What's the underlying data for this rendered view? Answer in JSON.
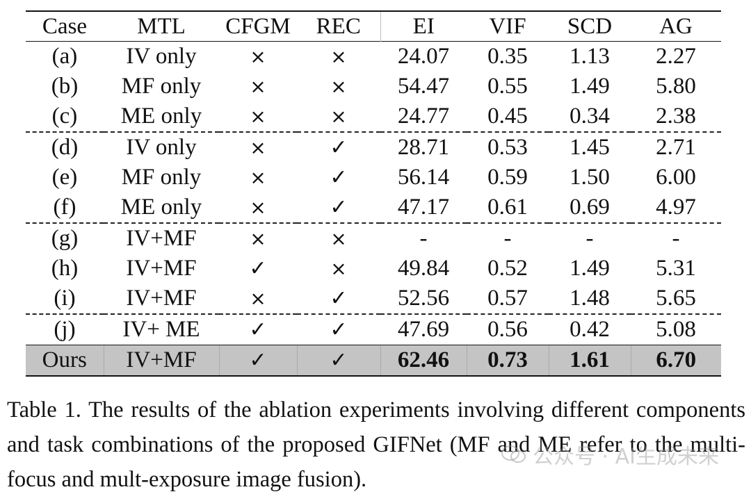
{
  "table": {
    "headers": [
      "Case",
      "MTL",
      "CFGM",
      "REC",
      "EI",
      "VIF",
      "SCD",
      "AG"
    ],
    "rows": [
      {
        "case": "(a)",
        "mtl": "IV only",
        "cfgm": "×",
        "rec": "×",
        "ei": "24.07",
        "vif": "0.35",
        "scd": "1.13",
        "ag": "2.27"
      },
      {
        "case": "(b)",
        "mtl": "MF only",
        "cfgm": "×",
        "rec": "×",
        "ei": "54.47",
        "vif": "0.55",
        "scd": "1.49",
        "ag": "5.80"
      },
      {
        "case": "(c)",
        "mtl": "ME only",
        "cfgm": "×",
        "rec": "×",
        "ei": "24.77",
        "vif": "0.45",
        "scd": "0.34",
        "ag": "2.38"
      },
      {
        "case": "(d)",
        "mtl": "IV only",
        "cfgm": "×",
        "rec": "✓",
        "ei": "28.71",
        "vif": "0.53",
        "scd": "1.45",
        "ag": "2.71"
      },
      {
        "case": "(e)",
        "mtl": "MF only",
        "cfgm": "×",
        "rec": "✓",
        "ei": "56.14",
        "vif": "0.59",
        "scd": "1.50",
        "ag": "6.00"
      },
      {
        "case": "(f)",
        "mtl": "ME only",
        "cfgm": "×",
        "rec": "✓",
        "ei": "47.17",
        "vif": "0.61",
        "scd": "0.69",
        "ag": "4.97"
      },
      {
        "case": "(g)",
        "mtl": "IV+MF",
        "cfgm": "×",
        "rec": "×",
        "ei": "-",
        "vif": "-",
        "scd": "-",
        "ag": "-"
      },
      {
        "case": "(h)",
        "mtl": "IV+MF",
        "cfgm": "✓",
        "rec": "×",
        "ei": "49.84",
        "vif": "0.52",
        "scd": "1.49",
        "ag": "5.31"
      },
      {
        "case": "(i)",
        "mtl": "IV+MF",
        "cfgm": "×",
        "rec": "✓",
        "ei": "52.56",
        "vif": "0.57",
        "scd": "1.48",
        "ag": "5.65"
      },
      {
        "case": "(j)",
        "mtl": "IV+ ME",
        "cfgm": "✓",
        "rec": "✓",
        "ei": "47.69",
        "vif": "0.56",
        "scd": "0.42",
        "ag": "5.08"
      },
      {
        "case": "Ours",
        "mtl": "IV+MF",
        "cfgm": "✓",
        "rec": "✓",
        "ei": "62.46",
        "vif": "0.73",
        "scd": "1.61",
        "ag": "6.70"
      }
    ]
  },
  "caption": "Table 1. The results of the ablation experiments involving different components and task combinations of the proposed GIFNet (MF and ME refer to the multi-focus and mult-exposure image fusion).",
  "watermark": "公众号 · AI生成未来",
  "colors": {
    "highlight_row": "#c4c4c4",
    "text": "#111111"
  }
}
